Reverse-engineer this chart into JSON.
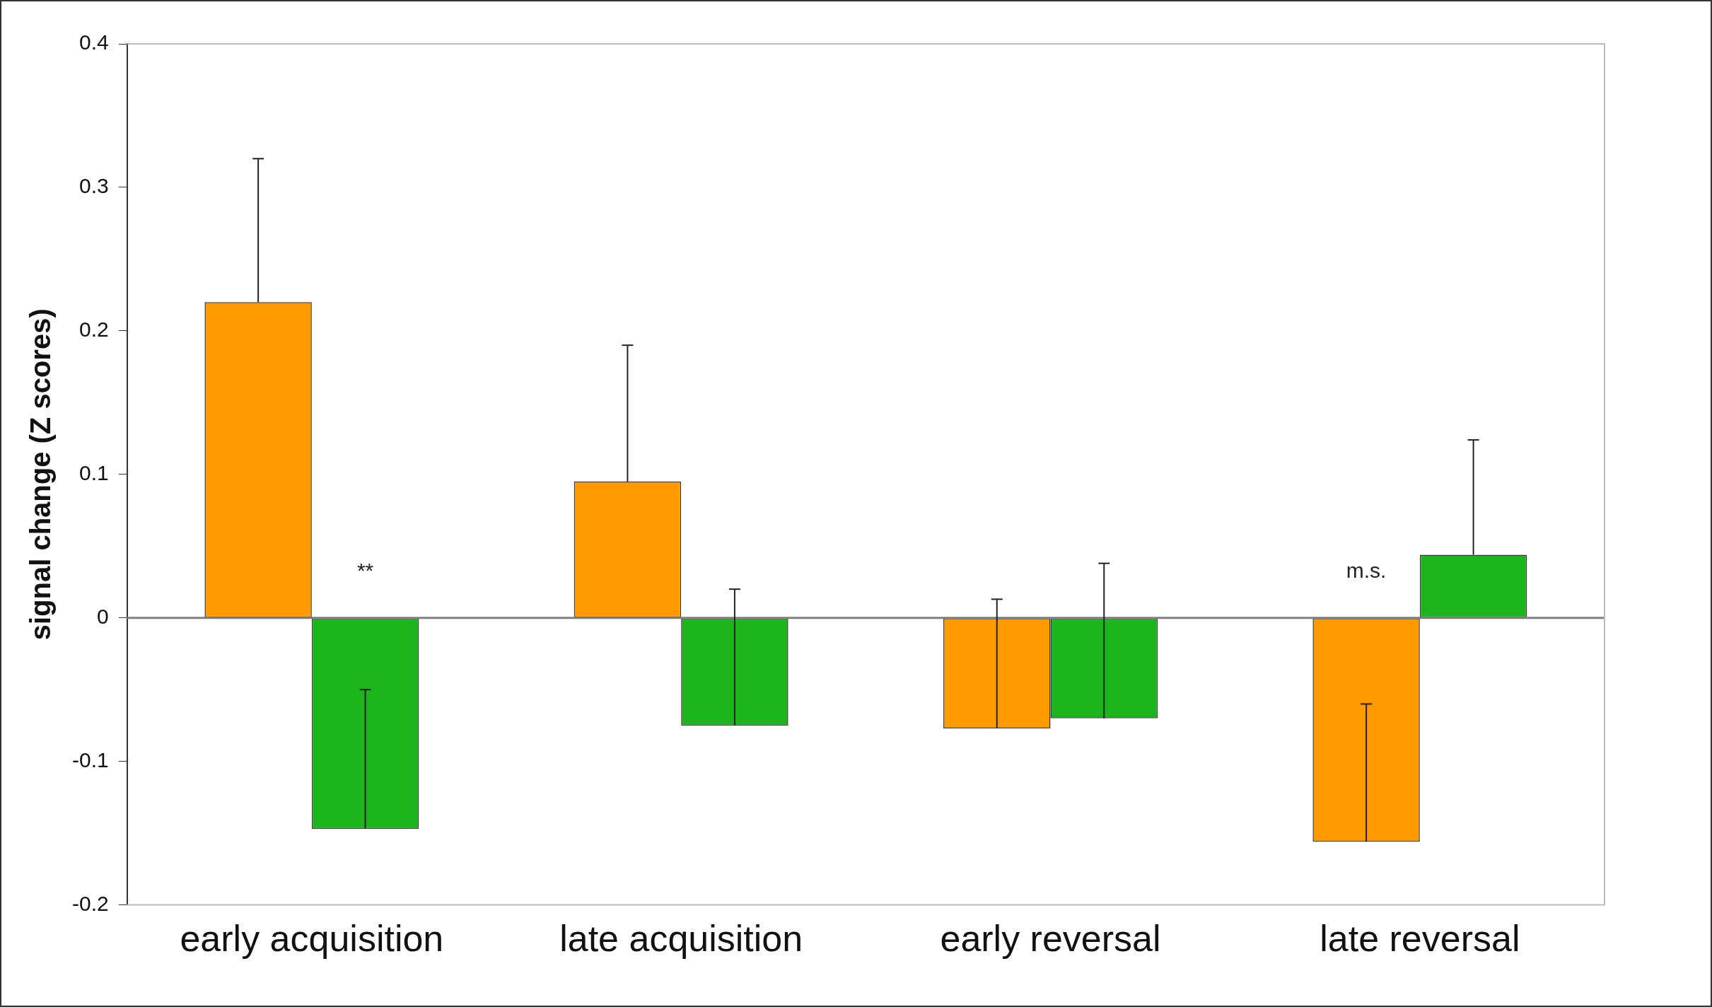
{
  "chart_data": {
    "type": "bar",
    "ylabel": "signal change (Z scores)",
    "categories": [
      "early acquisition",
      "late acquisition",
      "early reversal",
      "late reversal"
    ],
    "series": [
      {
        "color": "#ff9900",
        "values": [
          0.22,
          0.095,
          -0.077,
          -0.156
        ],
        "errors": [
          [
            0.22,
            0.32
          ],
          [
            0.095,
            0.19
          ],
          [
            -0.077,
            0.013
          ],
          [
            -0.156,
            -0.06
          ]
        ]
      },
      {
        "color": "#1db51d",
        "values": [
          -0.147,
          -0.075,
          -0.07,
          0.044
        ],
        "errors": [
          [
            -0.147,
            -0.05
          ],
          [
            -0.075,
            0.02
          ],
          [
            -0.07,
            0.038
          ],
          [
            0.044,
            0.124
          ]
        ]
      }
    ],
    "ylim": [
      -0.2,
      0.4
    ],
    "yticks": [
      -0.2,
      -0.1,
      0,
      0.1,
      0.2,
      0.3,
      0.4
    ],
    "grid": false,
    "legend": false,
    "ref_lines": [
      {
        "axis": "y",
        "value": 0,
        "color": "#808080"
      }
    ],
    "annotations": [
      "**",
      "m.s."
    ]
  }
}
